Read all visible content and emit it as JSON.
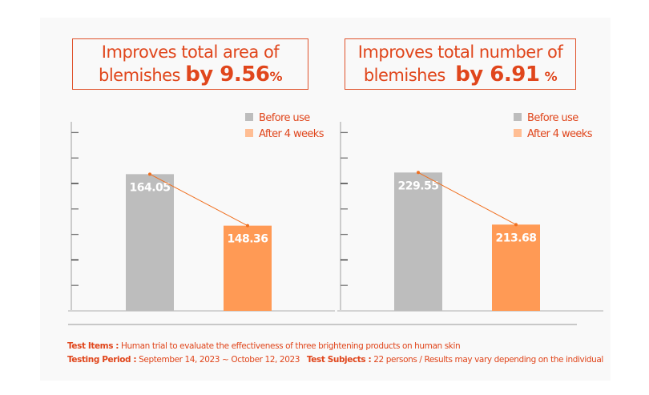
{
  "titles": [
    {
      "line1": "Improves total area of",
      "line2_text": "blemishes",
      "line2_by": "by 9.56",
      "line2_pct": "%"
    },
    {
      "line1": "Improves total number of",
      "line2_text": "blemishes",
      "line2_by": "by 6.91",
      "line2_pct": "%"
    }
  ],
  "colors": {
    "accent": "#e0461c",
    "before": "#bdbdbd",
    "after": "#ff9a55",
    "legend_after": "#ffbe94",
    "trend": "#f07020",
    "axis": "#bdbdbd",
    "panel": "#f9f9f9"
  },
  "chart_data": [
    {
      "type": "bar",
      "title": "Improves total area of blemishes by 9.56%",
      "categories": [
        "Before use",
        "After 4 weeks"
      ],
      "values": [
        164.05,
        148.36
      ],
      "value_labels": [
        "164.05",
        "148.36"
      ],
      "legend": [
        "Before use",
        "After 4 weeks"
      ],
      "legend_position": "top-right",
      "ylim": [
        122.4,
        180
      ],
      "ytick_count": 7,
      "grid": false,
      "trend_line": true
    },
    {
      "type": "bar",
      "title": "Improves total number of blemishes by 6.91%",
      "categories": [
        "Before use",
        "After 4 weeks"
      ],
      "values": [
        229.55,
        213.68
      ],
      "value_labels": [
        "229.55",
        "213.68"
      ],
      "legend": [
        "Before use",
        "After 4 weeks"
      ],
      "legend_position": "top-right",
      "ylim": [
        187.4,
        245
      ],
      "ytick_count": 7,
      "grid": false,
      "trend_line": true
    }
  ],
  "notes": {
    "test_items_label": "Test Items :",
    "test_items_text": " Human trial to evaluate the effectiveness of three brightening products on human skin",
    "period_label": "Testing Period :",
    "period_text": " September 14, 2023 ~ October 12, 2023",
    "subjects_label": "Test Subjects :",
    "subjects_text": " 22 persons / Results may vary depending on the individual"
  }
}
